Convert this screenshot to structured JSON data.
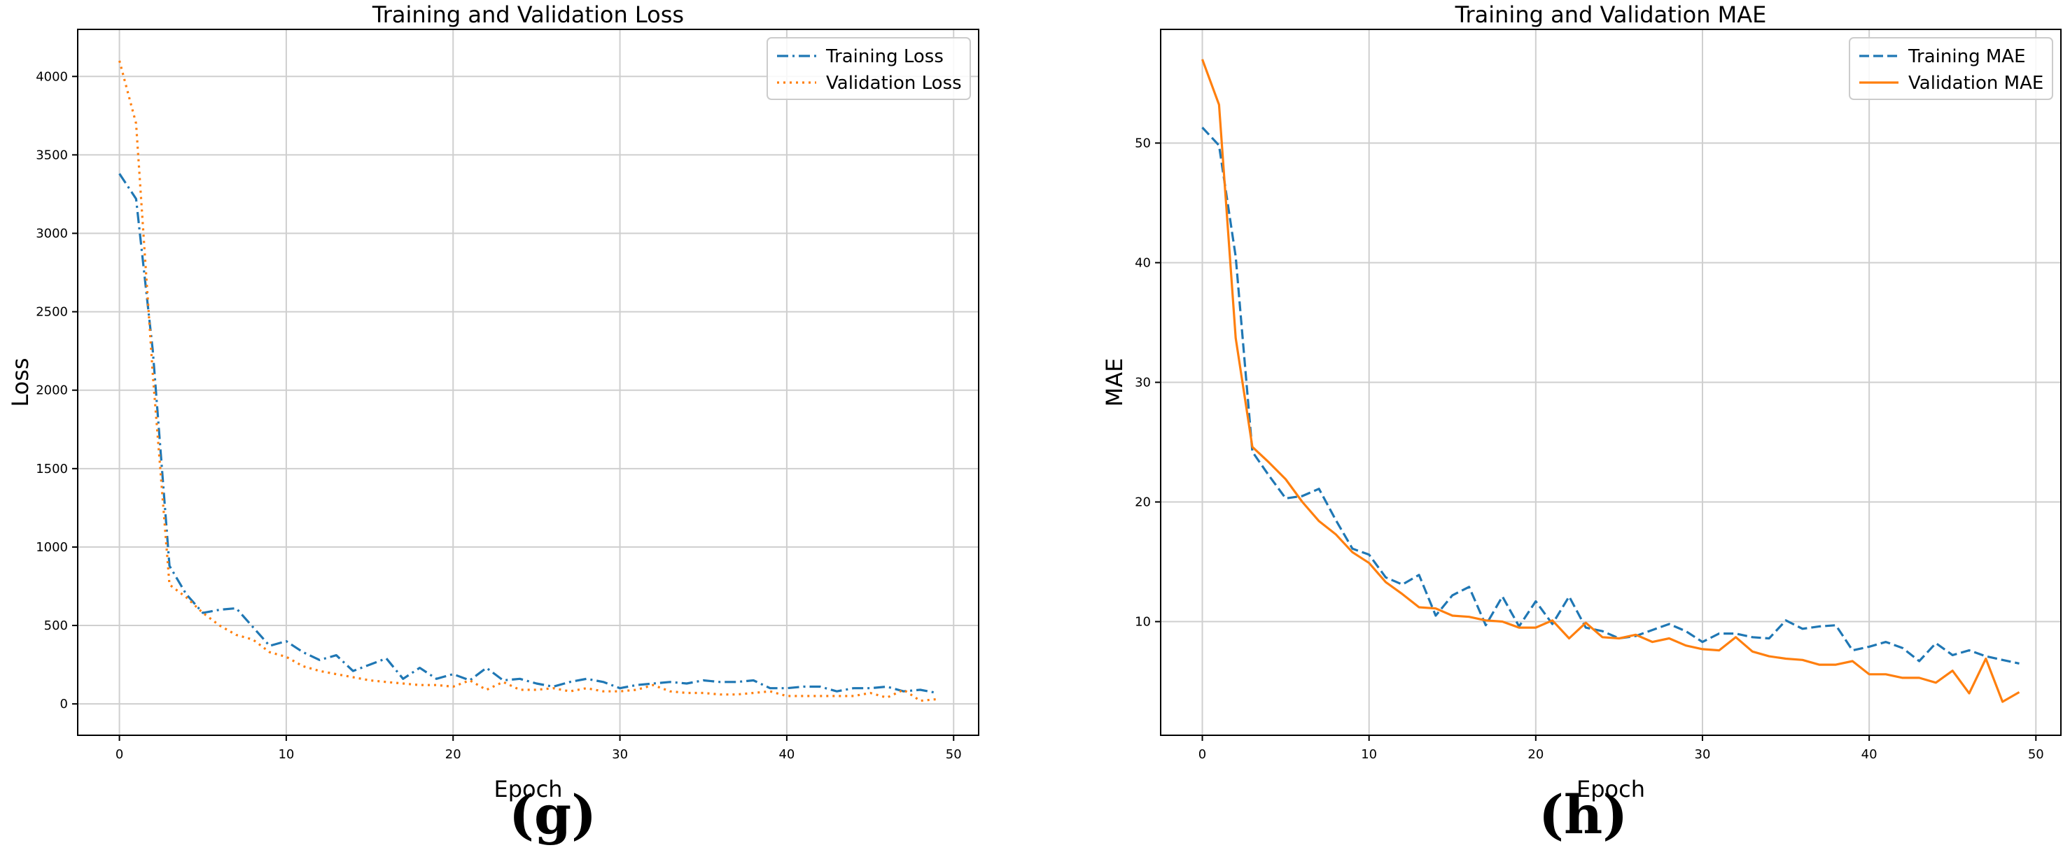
{
  "panel_labels": {
    "g": "(g)",
    "h": "(h)"
  },
  "chart_data": [
    {
      "type": "line",
      "title": "Training and Validation Loss",
      "xlabel": "Epoch",
      "ylabel": "Loss",
      "xlim": [
        -2.5,
        51.5
      ],
      "ylim": [
        -200,
        4300
      ],
      "xticks": [
        0,
        10,
        20,
        30,
        40,
        50
      ],
      "yticks": [
        0,
        500,
        1000,
        1500,
        2000,
        2500,
        3000,
        3500,
        4000
      ],
      "grid": true,
      "legend_position": "top-right",
      "x": [
        0,
        1,
        2,
        3,
        4,
        5,
        6,
        7,
        8,
        9,
        10,
        11,
        12,
        13,
        14,
        15,
        16,
        17,
        18,
        19,
        20,
        21,
        22,
        23,
        24,
        25,
        26,
        27,
        28,
        29,
        30,
        31,
        32,
        33,
        34,
        35,
        36,
        37,
        38,
        39,
        40,
        41,
        42,
        43,
        44,
        45,
        46,
        47,
        48,
        49
      ],
      "series": [
        {
          "name": "Training Loss",
          "color": "#1f77b4",
          "dash": "dashdot",
          "values": [
            3380,
            3220,
            2250,
            880,
            700,
            580,
            600,
            610,
            490,
            370,
            400,
            330,
            280,
            310,
            210,
            250,
            290,
            160,
            230,
            160,
            190,
            150,
            230,
            150,
            160,
            130,
            110,
            140,
            160,
            140,
            100,
            120,
            130,
            140,
            130,
            150,
            140,
            140,
            150,
            100,
            100,
            110,
            110,
            80,
            100,
            100,
            110,
            80,
            90,
            70
          ]
        },
        {
          "name": "Validation Loss",
          "color": "#ff7f0e",
          "dash": "dotted",
          "values": [
            4100,
            3700,
            2100,
            760,
            680,
            580,
            500,
            440,
            410,
            330,
            300,
            240,
            210,
            190,
            170,
            150,
            140,
            130,
            120,
            120,
            110,
            150,
            90,
            140,
            90,
            90,
            100,
            80,
            100,
            80,
            80,
            90,
            120,
            80,
            70,
            70,
            60,
            60,
            70,
            80,
            50,
            50,
            50,
            50,
            50,
            70,
            40,
            90,
            20,
            30
          ]
        }
      ]
    },
    {
      "type": "line",
      "title": "Training and Validation MAE",
      "xlabel": "Epoch",
      "ylabel": "MAE",
      "xlim": [
        -2.5,
        51.5
      ],
      "ylim": [
        0.5,
        59.5
      ],
      "xticks": [
        0,
        10,
        20,
        30,
        40,
        50
      ],
      "yticks": [
        10,
        20,
        30,
        40,
        50
      ],
      "grid": true,
      "legend_position": "top-right",
      "x": [
        0,
        1,
        2,
        3,
        4,
        5,
        6,
        7,
        8,
        9,
        10,
        11,
        12,
        13,
        14,
        15,
        16,
        17,
        18,
        19,
        20,
        21,
        22,
        23,
        24,
        25,
        26,
        27,
        28,
        29,
        30,
        31,
        32,
        33,
        34,
        35,
        36,
        37,
        38,
        39,
        40,
        41,
        42,
        43,
        44,
        45,
        46,
        47,
        48,
        49
      ],
      "series": [
        {
          "name": "Training MAE",
          "color": "#1f77b4",
          "dash": "dashed",
          "values": [
            51.3,
            49.8,
            40.5,
            24.2,
            22.2,
            20.3,
            20.5,
            21.1,
            18.5,
            16.1,
            15.6,
            13.7,
            13.1,
            13.9,
            10.5,
            12.2,
            12.9,
            9.7,
            12.1,
            9.6,
            11.7,
            9.8,
            12.1,
            9.5,
            9.2,
            8.6,
            8.8,
            9.3,
            9.8,
            9.2,
            8.3,
            9.0,
            9.0,
            8.7,
            8.6,
            10.1,
            9.4,
            9.6,
            9.7,
            7.6,
            7.9,
            8.3,
            7.8,
            6.7,
            8.2,
            7.2,
            7.6,
            7.1,
            6.8,
            6.5
          ]
        },
        {
          "name": "Validation MAE",
          "color": "#ff7f0e",
          "dash": "solid",
          "values": [
            57.0,
            53.2,
            33.7,
            24.6,
            23.3,
            21.9,
            20.0,
            18.4,
            17.3,
            15.8,
            14.9,
            13.3,
            12.3,
            11.2,
            11.1,
            10.5,
            10.4,
            10.1,
            10.0,
            9.5,
            9.5,
            10.1,
            8.6,
            9.9,
            8.7,
            8.6,
            8.9,
            8.3,
            8.6,
            8.0,
            7.7,
            7.6,
            8.7,
            7.5,
            7.1,
            6.9,
            6.8,
            6.4,
            6.4,
            6.7,
            5.6,
            5.6,
            5.3,
            5.3,
            4.9,
            5.9,
            4.0,
            6.9,
            3.3,
            4.1
          ]
        }
      ]
    }
  ]
}
